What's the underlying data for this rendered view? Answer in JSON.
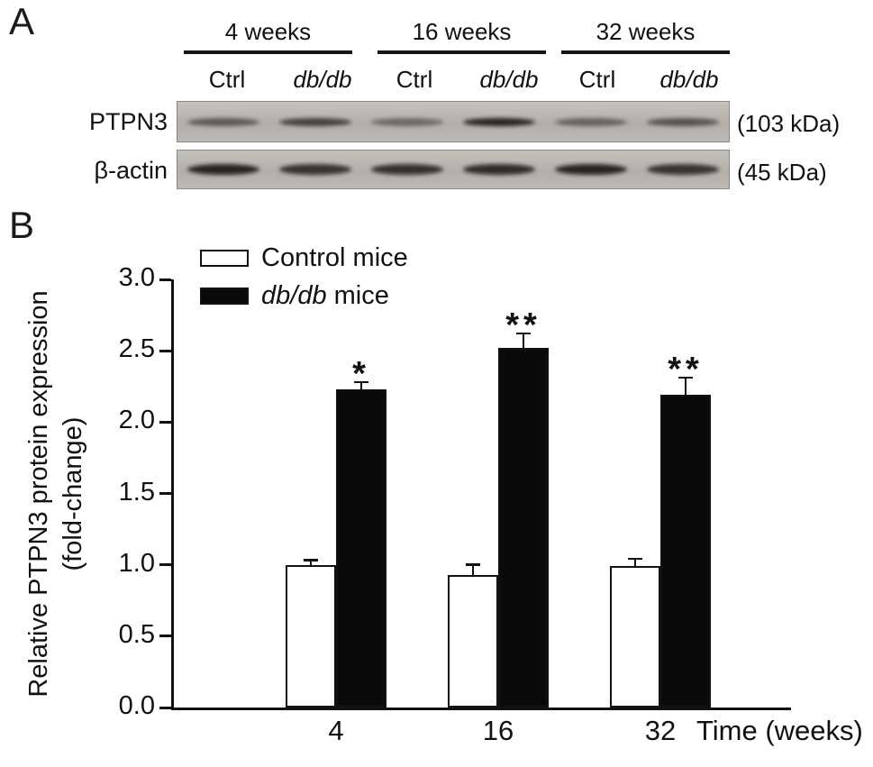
{
  "panelA": {
    "letter": "A",
    "groups": [
      {
        "label": "4 weeks"
      },
      {
        "label": "16 weeks"
      },
      {
        "label": "32 weeks"
      }
    ],
    "lanes": [
      {
        "text": "Ctrl"
      },
      {
        "text": "db/db"
      },
      {
        "text": "Ctrl"
      },
      {
        "text": "db/db"
      },
      {
        "text": "Ctrl"
      },
      {
        "text": "db/db"
      }
    ],
    "rows": [
      {
        "protein": "PTPN3",
        "size": "(103 kDa)",
        "bands": [
          0.55,
          0.72,
          0.45,
          0.9,
          0.5,
          0.6
        ]
      },
      {
        "protein": "β-actin",
        "size": "(45 kDa)",
        "bands": [
          0.9,
          0.8,
          0.82,
          0.85,
          0.9,
          0.8
        ]
      }
    ]
  },
  "panelB": {
    "letter": "B",
    "legend": [
      {
        "swatch": "#ffffff",
        "italic_part": "",
        "rest": "Control mice"
      },
      {
        "swatch": "#000000",
        "italic_part": "db/db",
        "rest": " mice"
      }
    ]
  },
  "chart_data": {
    "type": "bar",
    "categories": [
      "4",
      "16",
      "32"
    ],
    "series": [
      {
        "name": "Control mice",
        "fill": "#ffffff",
        "values": [
          1.0,
          0.93,
          0.99
        ],
        "errors": [
          0.03,
          0.07,
          0.05
        ],
        "significance": [
          "",
          "",
          ""
        ]
      },
      {
        "name": "db/db mice",
        "fill": "#0a0a0a",
        "values": [
          2.23,
          2.52,
          2.19
        ],
        "errors": [
          0.05,
          0.1,
          0.12
        ],
        "significance": [
          "*",
          "**",
          "**"
        ]
      }
    ],
    "title": "",
    "ylabel_line1": "Relative PTPN3 protein expression",
    "ylabel_line2": "(fold-change)",
    "xlabel": "Time (weeks)",
    "ylim": [
      0,
      3.0
    ],
    "yticks": [
      0,
      0.5,
      1.0,
      1.5,
      2.0,
      2.5,
      3.0
    ],
    "grid": false,
    "legend_position": "top-left-inside",
    "axis_color": "#111111"
  }
}
